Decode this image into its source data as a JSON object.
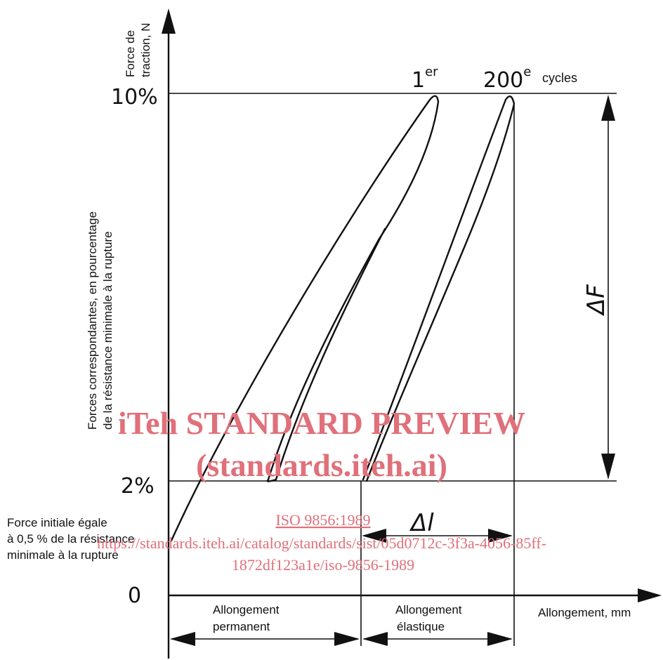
{
  "diagram": {
    "y_axis": {
      "label_line1": "Force de",
      "label_line2": "traction, N",
      "side_label_line1": "Forces correspondantes, en pourcentage",
      "side_label_line2": "de la résistance minimale à la rupture",
      "tick_top": "10%",
      "tick_low": "2%",
      "origin": "0"
    },
    "x_axis": {
      "label": "Allongement, mm"
    },
    "curves": {
      "first_label_base": "1",
      "first_label_sup": "er",
      "last_label_base": "200",
      "last_label_sup": "e",
      "cycles_word": "cycles"
    },
    "delta_f": "ΔF",
    "delta_l": "Δl",
    "initial_force_line1": "Force initiale égale",
    "initial_force_line2": "à 0,5 % de la résistance",
    "initial_force_line3": "minimale à la rupture",
    "permanent_line1": "Allongement",
    "permanent_line2": "permanent",
    "elastic_line1": "Allongement",
    "elastic_line2": "élastique"
  },
  "watermark": {
    "title": "iTeh STANDARD PREVIEW",
    "subtitle": "(standards.iteh.ai)",
    "doc_code": "ISO 9856:1989",
    "url_line1": "https://standards.iteh.ai/catalog/standards/sist/05d0712c-3f3a-4056-85ff-",
    "url_line2": "1872df123a1e/iso-9856-1989",
    "color": "#e0707a"
  }
}
